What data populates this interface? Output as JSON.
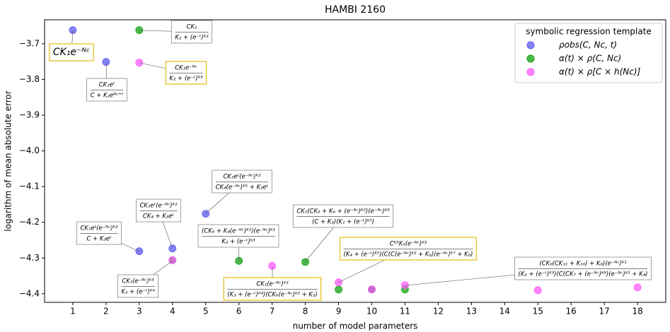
{
  "chart_data": {
    "type": "scatter",
    "title": "HAMBI 2160",
    "x_label": "number of model parameters",
    "y_label": "logarithm of mean absolute error",
    "xlim": [
      0.15,
      18.85
    ],
    "ylim": [
      -4.424,
      -3.633
    ],
    "xticks": [
      1,
      2,
      3,
      4,
      5,
      6,
      7,
      8,
      9,
      10,
      11,
      12,
      13,
      14,
      15,
      16,
      17,
      18
    ],
    "yticks": [
      {
        "value": -3.7,
        "label": "−3.7"
      },
      {
        "value": -3.8,
        "label": "−3.8"
      },
      {
        "value": -3.9,
        "label": "−3.9"
      },
      {
        "value": -4.0,
        "label": "−4.0"
      },
      {
        "value": -4.1,
        "label": "−4.1"
      },
      {
        "value": -4.2,
        "label": "−4.2"
      },
      {
        "value": -4.3,
        "label": "−4.3"
      },
      {
        "value": -4.4,
        "label": "−4.4"
      }
    ],
    "grid": false,
    "legend_title": "symbolic regression template",
    "legend_position": "upper right",
    "series": [
      {
        "name": "ρobs(C, Nc, t)",
        "color": "#5b5bef",
        "x": [
          1,
          2,
          3,
          4,
          5,
          10
        ],
        "values": [
          -3.662,
          -3.751,
          -4.281,
          -4.273,
          -4.176,
          -4.388
        ]
      },
      {
        "name": "α(t) × ρ(C, Nc)",
        "color": "#12a012",
        "x": [
          3,
          4,
          6,
          8,
          9,
          10,
          11
        ],
        "values": [
          -3.662,
          -4.306,
          -4.308,
          -4.311,
          -4.388,
          -4.388,
          -4.388
        ]
      },
      {
        "name": "α(t) × ρ[C × h(Nc)]",
        "color": "#ff5cff",
        "x": [
          3,
          4,
          7,
          9,
          10,
          11,
          15,
          18
        ],
        "values": [
          -3.753,
          -4.306,
          -4.322,
          -4.368,
          -4.388,
          -4.376,
          -4.39,
          -4.382
        ]
      }
    ],
    "annotations": [
      {
        "text": "CK₁e⁻ᴺᶜ"
      },
      {
        "numerator": "CK₁eᵗ",
        "denominator": "C + K₂eᴺᶜ⁺ᵗ"
      },
      {
        "numerator": "CK₁",
        "denominator": "K₂ + (e⁻ᵗ)ᴷ²"
      },
      {
        "numerator": "CK₁e⁻ᴺᶜ",
        "denominator": "K₂ + (e⁻ᵗ)ᴷ³"
      },
      {
        "numerator": "CK₁eᵗ(e⁻ᴺᶜ)ᴷ²",
        "denominator": "CK₄(e⁻ᴺᶜ)ᴷ⁵ + K₃eᵗ"
      },
      {
        "numerator": "CK₁eᵗ(e⁻ᴺᶜ)ᴷ²",
        "denominator": "CK₄ + K₃eᵗ"
      },
      {
        "numerator": "CK₁eᵗ(e⁻ᴺᶜ)ᴷ²",
        "denominator": "C + K₃eᵗ"
      },
      {
        "numerator": "(CK₆ + K₄(e⁻ᴺᶜ)ᴷ¹)(e⁻ᴺᶜ)ᴷ¹",
        "denominator": "K₂ + (e⁻ᵗ)ᴷ³"
      },
      {
        "numerator": "CK₁(CK₈ + K₆ + (e⁻ᴺᶜ)ᴷ²)(e⁻ᴺᶜ)ᴷ³",
        "denominator": "(C + K₃)(K₁ + (e⁻ᵗ)ᴷ⁵)"
      },
      {
        "numerator": "CK₁(e⁻ᴺᶜ)ᴷ³",
        "denominator": "K₃ + (e⁻ᵗ)ᴷ⁴"
      },
      {
        "numerator": "CK₁(e⁻ᴺᶜ)ᴷ²",
        "denominator": "(K₃ + (e⁻ᵗ)ᴷ⁴)(CK₆(e⁻ᴺᶜ)ᴷ² + K₅)"
      },
      {
        "numerator": "Cᴷ⁵K₁(e⁻ᴺᶜ)ᴷ³",
        "denominator": "(K₄ + (e⁻ᵗ)ᴷ⁵)(C(C(e⁻ᴺᶜ)ᴷ² + K₆)(e⁻ᴺᶜ)ᴷ⁷ + K₈)"
      },
      {
        "numerator": "(CK₉(CK₁₁ + K₁₀) + K₈)(e⁻ᴺᶜ)ᴷ¹",
        "denominator": "(K₂ + (e⁻ᵗ)ᴷ³)(C(CK₇ + (e⁻ᴺᶜ)ᴷ⁶)(e⁻ᴺᶜ)ᴷ⁵ + K₄)"
      }
    ]
  }
}
